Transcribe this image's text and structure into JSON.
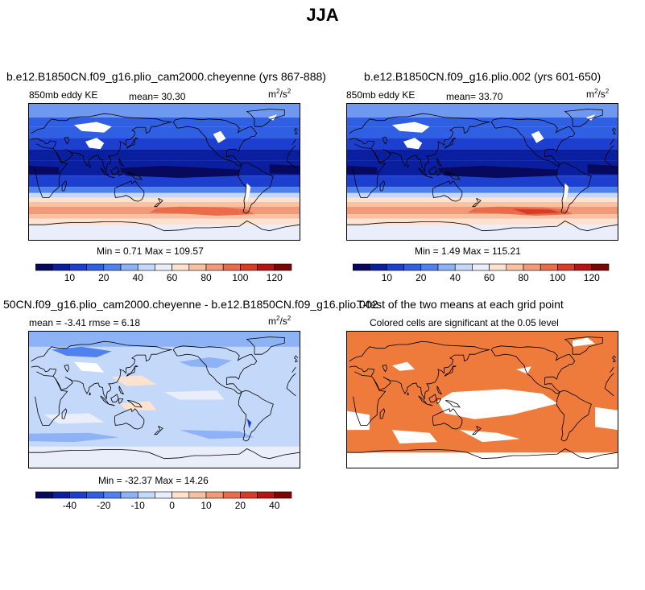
{
  "figure_title": "JJA",
  "panels": [
    {
      "title": "b.e12.B1850CN.f09_g16.plio_cam2000.cheyenne (yrs 867-888)",
      "left_label": "850mb eddy KE",
      "center_label": "mean=  30.30",
      "units": "m",
      "units_sup": "2",
      "units_tail": "/s",
      "units_sup2": "2",
      "stats": "Min =    0.71  Max =  109.57"
    },
    {
      "title": "b.e12.B1850CN.f09_g16.plio.002 (yrs 601-650)",
      "left_label": "850mb eddy KE",
      "center_label": "mean=  33.70",
      "units": "m",
      "units_sup": "2",
      "units_tail": "/s",
      "units_sup2": "2",
      "stats": "Min =    1.49  Max =  115.21"
    },
    {
      "title": "50CN.f09_g16.plio_cam2000.cheyenne - b.e12.B1850CN.f09_g16.plio.002",
      "left_label": "mean =   -3.41      rmse =    6.18",
      "units": "m",
      "units_sup": "2",
      "units_tail": "/s",
      "units_sup2": "2",
      "stats": "Min = -32.37  Max =  14.26"
    },
    {
      "title": "T-test of the two means at each grid point",
      "subtitle": "Colored cells are significant at the 0.05 level"
    }
  ],
  "chart_data": [
    {
      "type": "heatmap",
      "title": "b.e12.B1850CN.f09_g16.plio_cam2000.cheyenne (yrs 867-888)",
      "variable": "850mb eddy KE",
      "mean": 30.3,
      "min": 0.71,
      "max": 109.57,
      "colorbar": {
        "tick_labels": [
          "10",
          "20",
          "40",
          "60",
          "80",
          "100",
          "120"
        ],
        "tick_values": [
          10,
          20,
          40,
          60,
          80,
          100,
          120
        ],
        "levels": [
          5,
          10,
          15,
          20,
          30,
          40,
          50,
          60,
          70,
          80,
          90,
          100,
          110,
          120,
          130
        ],
        "colors": [
          "#08085c",
          "#0a1fa0",
          "#1c3fd0",
          "#2f5fe2",
          "#4f82ee",
          "#8eb2f6",
          "#c4d8fa",
          "#eaeefb",
          "#fce2cf",
          "#f8c1a3",
          "#f29a78",
          "#e96c4b",
          "#d83c26",
          "#b51414",
          "#7c0505"
        ]
      }
    },
    {
      "type": "heatmap",
      "title": "b.e12.B1850CN.f09_g16.plio.002 (yrs 601-650)",
      "variable": "850mb eddy KE",
      "mean": 33.7,
      "min": 1.49,
      "max": 115.21,
      "colorbar": {
        "tick_labels": [
          "10",
          "20",
          "40",
          "60",
          "80",
          "100",
          "120"
        ],
        "tick_values": [
          10,
          20,
          40,
          60,
          80,
          100,
          120
        ],
        "levels": [
          5,
          10,
          15,
          20,
          30,
          40,
          50,
          60,
          70,
          80,
          90,
          100,
          110,
          120,
          130
        ],
        "colors": [
          "#08085c",
          "#0a1fa0",
          "#1c3fd0",
          "#2f5fe2",
          "#4f82ee",
          "#8eb2f6",
          "#c4d8fa",
          "#eaeefb",
          "#fce2cf",
          "#f8c1a3",
          "#f29a78",
          "#e96c4b",
          "#d83c26",
          "#b51414",
          "#7c0505"
        ]
      }
    },
    {
      "type": "heatmap",
      "title": "50CN.f09_g16.plio_cam2000.cheyenne - b.e12.B1850CN.f09_g16.plio.002",
      "mean": -3.41,
      "rmse": 6.18,
      "min": -32.37,
      "max": 14.26,
      "colorbar": {
        "tick_labels": [
          "-40",
          "-20",
          "-10",
          "0",
          "10",
          "20",
          "40"
        ],
        "tick_values": [
          -40,
          -20,
          -10,
          0,
          10,
          20,
          40
        ],
        "levels": [
          -50,
          -40,
          -30,
          -20,
          -15,
          -10,
          -5,
          0,
          5,
          10,
          15,
          20,
          30,
          40,
          50
        ],
        "colors": [
          "#08085c",
          "#0a1fa0",
          "#1c3fd0",
          "#2f5fe2",
          "#4f82ee",
          "#8eb2f6",
          "#c4d8fa",
          "#eaeefb",
          "#fce2cf",
          "#f8c1a3",
          "#f29a78",
          "#e96c4b",
          "#d83c26",
          "#b51414",
          "#7c0505"
        ]
      }
    },
    {
      "type": "heatmap",
      "title": "T-test of the two means at each grid point",
      "significance_level": 0.05,
      "significant_color": "#ee7a3c"
    }
  ]
}
